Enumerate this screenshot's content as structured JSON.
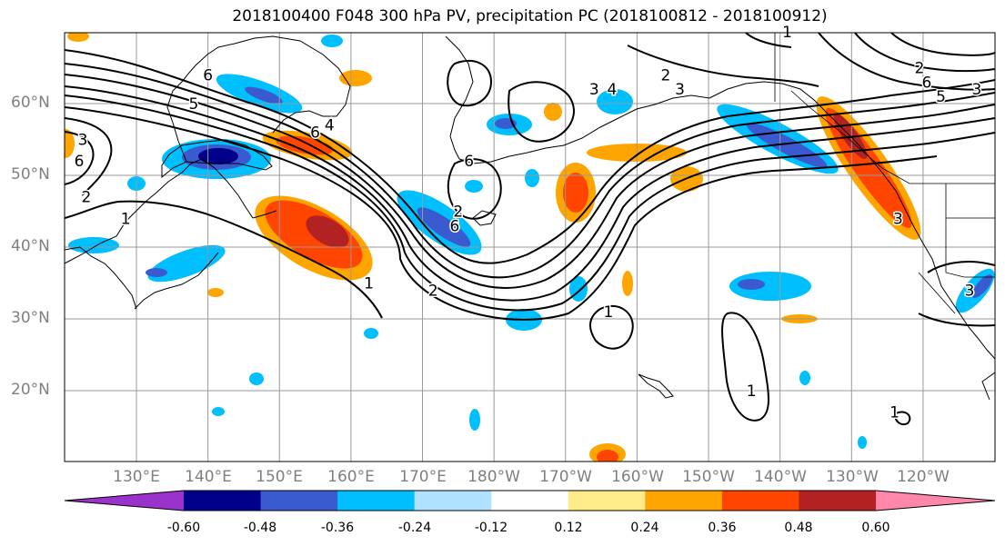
{
  "title": "2018100400 F048 300 hPa PV, precipitation PC (2018100812 - 2018100912)",
  "lat_labels": [
    "60°N",
    "50°N",
    "40°N",
    "30°N",
    "20°N"
  ],
  "lon_labels": [
    "130°E",
    "140°E",
    "150°E",
    "160°E",
    "170°E",
    "180°W",
    "170°W",
    "160°W",
    "150°W",
    "140°W",
    "130°W",
    "120°W"
  ],
  "colorbar": {
    "colors": [
      "#9933cc",
      "#00008b",
      "#3a5bcf",
      "#00bfff",
      "#b0e2ff",
      "#ffffff",
      "#ffeb88",
      "#ffa500",
      "#ff4500",
      "#b22222",
      "#ff88aa"
    ],
    "labels": [
      "-0.60",
      "-0.48",
      "-0.36",
      "-0.24",
      "-0.12",
      "0.12",
      "0.24",
      "0.36",
      "0.48",
      "0.60"
    ]
  },
  "contour_labels": [
    {
      "text": "3",
      "lon": 122.5,
      "lat": 55
    },
    {
      "text": "6",
      "lon": 122.0,
      "lat": 52
    },
    {
      "text": "2",
      "lon": 123.0,
      "lat": 47
    },
    {
      "text": "1",
      "lon": 128.5,
      "lat": 44
    },
    {
      "text": "6",
      "lon": 140.0,
      "lat": 64
    },
    {
      "text": "5",
      "lon": 138.0,
      "lat": 60
    },
    {
      "text": "6",
      "lon": 155.0,
      "lat": 56
    },
    {
      "text": "4",
      "lon": 157.0,
      "lat": 57
    },
    {
      "text": "6",
      "lon": 176.5,
      "lat": 52
    },
    {
      "text": "2",
      "lon": 175.0,
      "lat": 45
    },
    {
      "text": "6",
      "lon": 174.5,
      "lat": 43
    },
    {
      "text": "1",
      "lon": 162.5,
      "lat": 35
    },
    {
      "text": "2",
      "lon": 171.5,
      "lat": 34
    },
    {
      "text": "3",
      "lon": 194.0,
      "lat": 62
    },
    {
      "text": "4",
      "lon": 196.5,
      "lat": 62
    },
    {
      "text": "2",
      "lon": 204.0,
      "lat": 64
    },
    {
      "text": "3",
      "lon": 206.0,
      "lat": 62
    },
    {
      "text": "1",
      "lon": 221.0,
      "lat": 70
    },
    {
      "text": "1",
      "lon": 196.0,
      "lat": 31
    },
    {
      "text": "1",
      "lon": 216.0,
      "lat": 20
    },
    {
      "text": "1",
      "lon": 236.0,
      "lat": 17
    },
    {
      "text": "3",
      "lon": 236.5,
      "lat": 44
    },
    {
      "text": "2",
      "lon": 239.5,
      "lat": 65
    },
    {
      "text": "6",
      "lon": 240.5,
      "lat": 63
    },
    {
      "text": "5",
      "lon": 242.5,
      "lat": 61
    },
    {
      "text": "3",
      "lon": 247.5,
      "lat": 62
    },
    {
      "text": "3",
      "lon": 246.5,
      "lat": 34
    }
  ]
}
